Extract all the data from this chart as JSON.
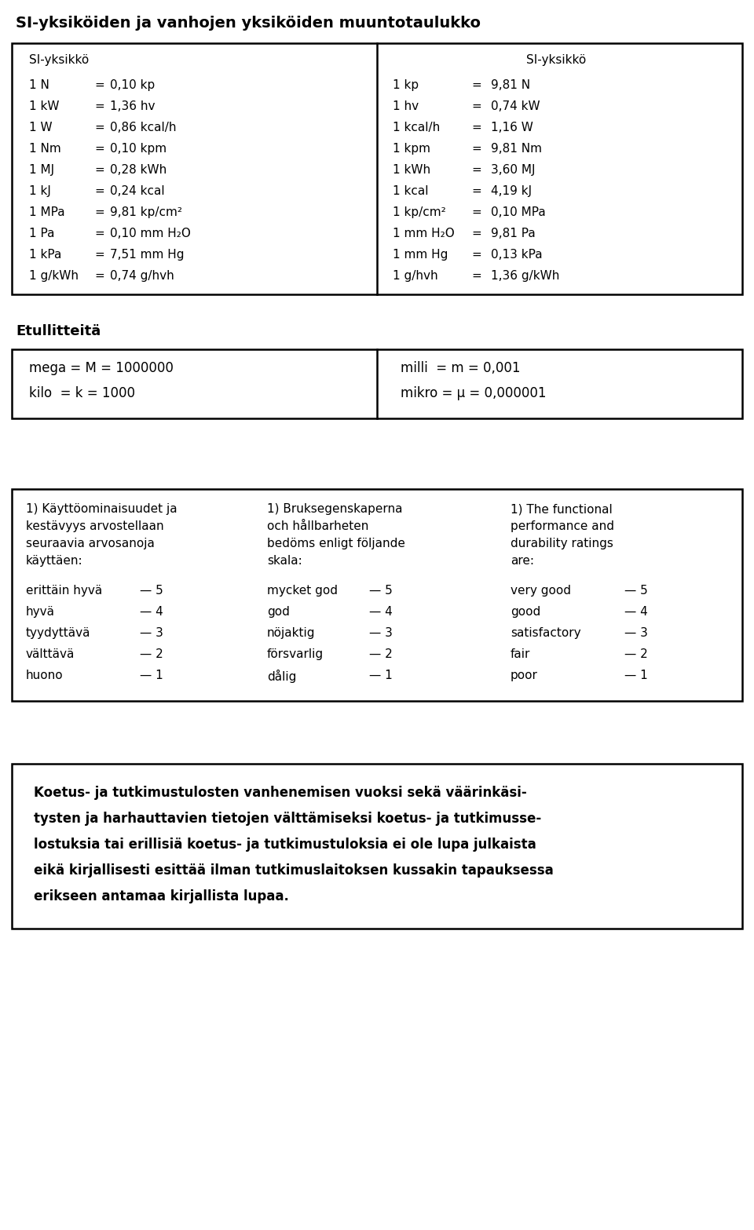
{
  "title": "SI-yksiköiden ja vanhojen yksiköiden muuntotaulukko",
  "bg_color": "#ffffff",
  "text_color": "#000000",
  "section1_header_left": "SI-yksikkö",
  "section1_rows_left": [
    [
      "1 N",
      "=",
      "0,10 kp"
    ],
    [
      "1 kW",
      "=",
      "1,36 hv"
    ],
    [
      "1 W",
      "=",
      "0,86 kcal/h"
    ],
    [
      "1 Nm",
      "=",
      "0,10 kpm"
    ],
    [
      "1 MJ",
      "=",
      "0,28 kWh"
    ],
    [
      "1 kJ",
      "=",
      "0,24 kcal"
    ],
    [
      "1 MPa",
      "=",
      "9,81 kp/cm²"
    ],
    [
      "1 Pa",
      "=",
      "0,10 mm H₂O"
    ],
    [
      "1 kPa",
      "=",
      "7,51 mm Hg"
    ],
    [
      "1 g/kWh",
      "=",
      "0,74 g/hvh"
    ]
  ],
  "section1_header_right": "SI-yksikkö",
  "section1_rows_right": [
    [
      "1 kp",
      "=",
      "9,81 N"
    ],
    [
      "1 hv",
      "=",
      "0,74 kW"
    ],
    [
      "1 kcal/h",
      "=",
      "1,16 W"
    ],
    [
      "1 kpm",
      "=",
      "9,81 Nm"
    ],
    [
      "1 kWh",
      "=",
      "3,60 MJ"
    ],
    [
      "1 kcal",
      "=",
      "4,19 kJ"
    ],
    [
      "1 kp/cm²",
      "=",
      "0,10 MPa"
    ],
    [
      "1 mm H₂O",
      "=",
      "9,81 Pa"
    ],
    [
      "1 mm Hg",
      "=",
      "0,13 kPa"
    ],
    [
      "1 g/hvh",
      "=",
      "1,36 g/kWh"
    ]
  ],
  "section2_title": "Etullitteitä",
  "section2_left": [
    "mega = M = 1000000",
    "kilo  = k = 1000"
  ],
  "section2_right": [
    "milli  = m = 0,001",
    "mikro = μ = 0,000001"
  ],
  "section3_col1_header": "1) Käyttöominaisuudet ja\nkestävyys arvostellaan\nseuraavia arvosanoja\nkäyttäen:",
  "section3_col2_header": "1) Bruksegenskaperna\noch hållbarheten\nbedöms enligt följande\nskala:",
  "section3_col3_header": "1) The functional\nperformance and\ndurability ratings\nare:",
  "section3_col1_items": [
    "erittäin hyvä",
    "hyvä",
    "tyydyttävä",
    "välttävä",
    "huono"
  ],
  "section3_col2_items": [
    "mycket god",
    "god",
    "nöjaktig",
    "försvarlig",
    "dålig"
  ],
  "section3_col3_items": [
    "very good",
    "good",
    "satisfactory",
    "fair",
    "poor"
  ],
  "section3_ratings": [
    "— 5",
    "— 4",
    "— 3",
    "— 2",
    "— 1"
  ],
  "section4_text": "Koetus- ja tutkimustulosten vanhenemisen vuoksi sekä väärinkäsi-\ntysten ja harhauttavien tietojen välttämiseksi koetus- ja tutkimusse-\nlostuksia tai erillisiä koetus- ja tutkimustuloksia ei ole lupa julkaista\neikä kirjallisesti esittää ilman tutkimuslaitoksen kussakin tapauksessa\nerikseen antamaa kirjallista lupaa.",
  "fig_w": 9.6,
  "fig_h": 15.67,
  "dpi": 100
}
